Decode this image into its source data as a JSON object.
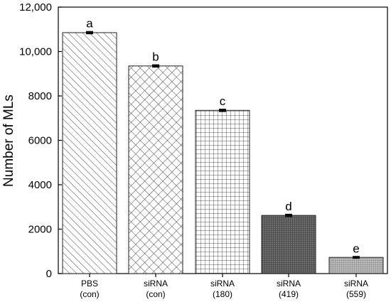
{
  "chart_data": {
    "type": "bar",
    "categories": [
      [
        "PBS",
        "(con)"
      ],
      [
        "siRNA",
        "(con)"
      ],
      [
        "siRNA",
        "(180)"
      ],
      [
        "siRNA",
        "(419)"
      ],
      [
        "siRNA",
        "(559)"
      ]
    ],
    "values": [
      10850,
      9350,
      7350,
      2620,
      730
    ],
    "errors": [
      40,
      40,
      40,
      40,
      30
    ],
    "significance": [
      "a",
      "b",
      "c",
      "d",
      "e"
    ],
    "patterns": [
      "diagonal-hatch",
      "cross-hatch",
      "square-grid",
      "dense-dark-grid",
      "dense-grid"
    ],
    "ylabel": "Number of MLs",
    "xlabel": "",
    "ylim": [
      0,
      12000
    ],
    "yticks": [
      0,
      2000,
      4000,
      6000,
      8000,
      10000,
      12000
    ],
    "ytick_labels": [
      "0",
      "2000",
      "4000",
      "6000",
      "8000",
      "10,000",
      "12,000"
    ]
  }
}
